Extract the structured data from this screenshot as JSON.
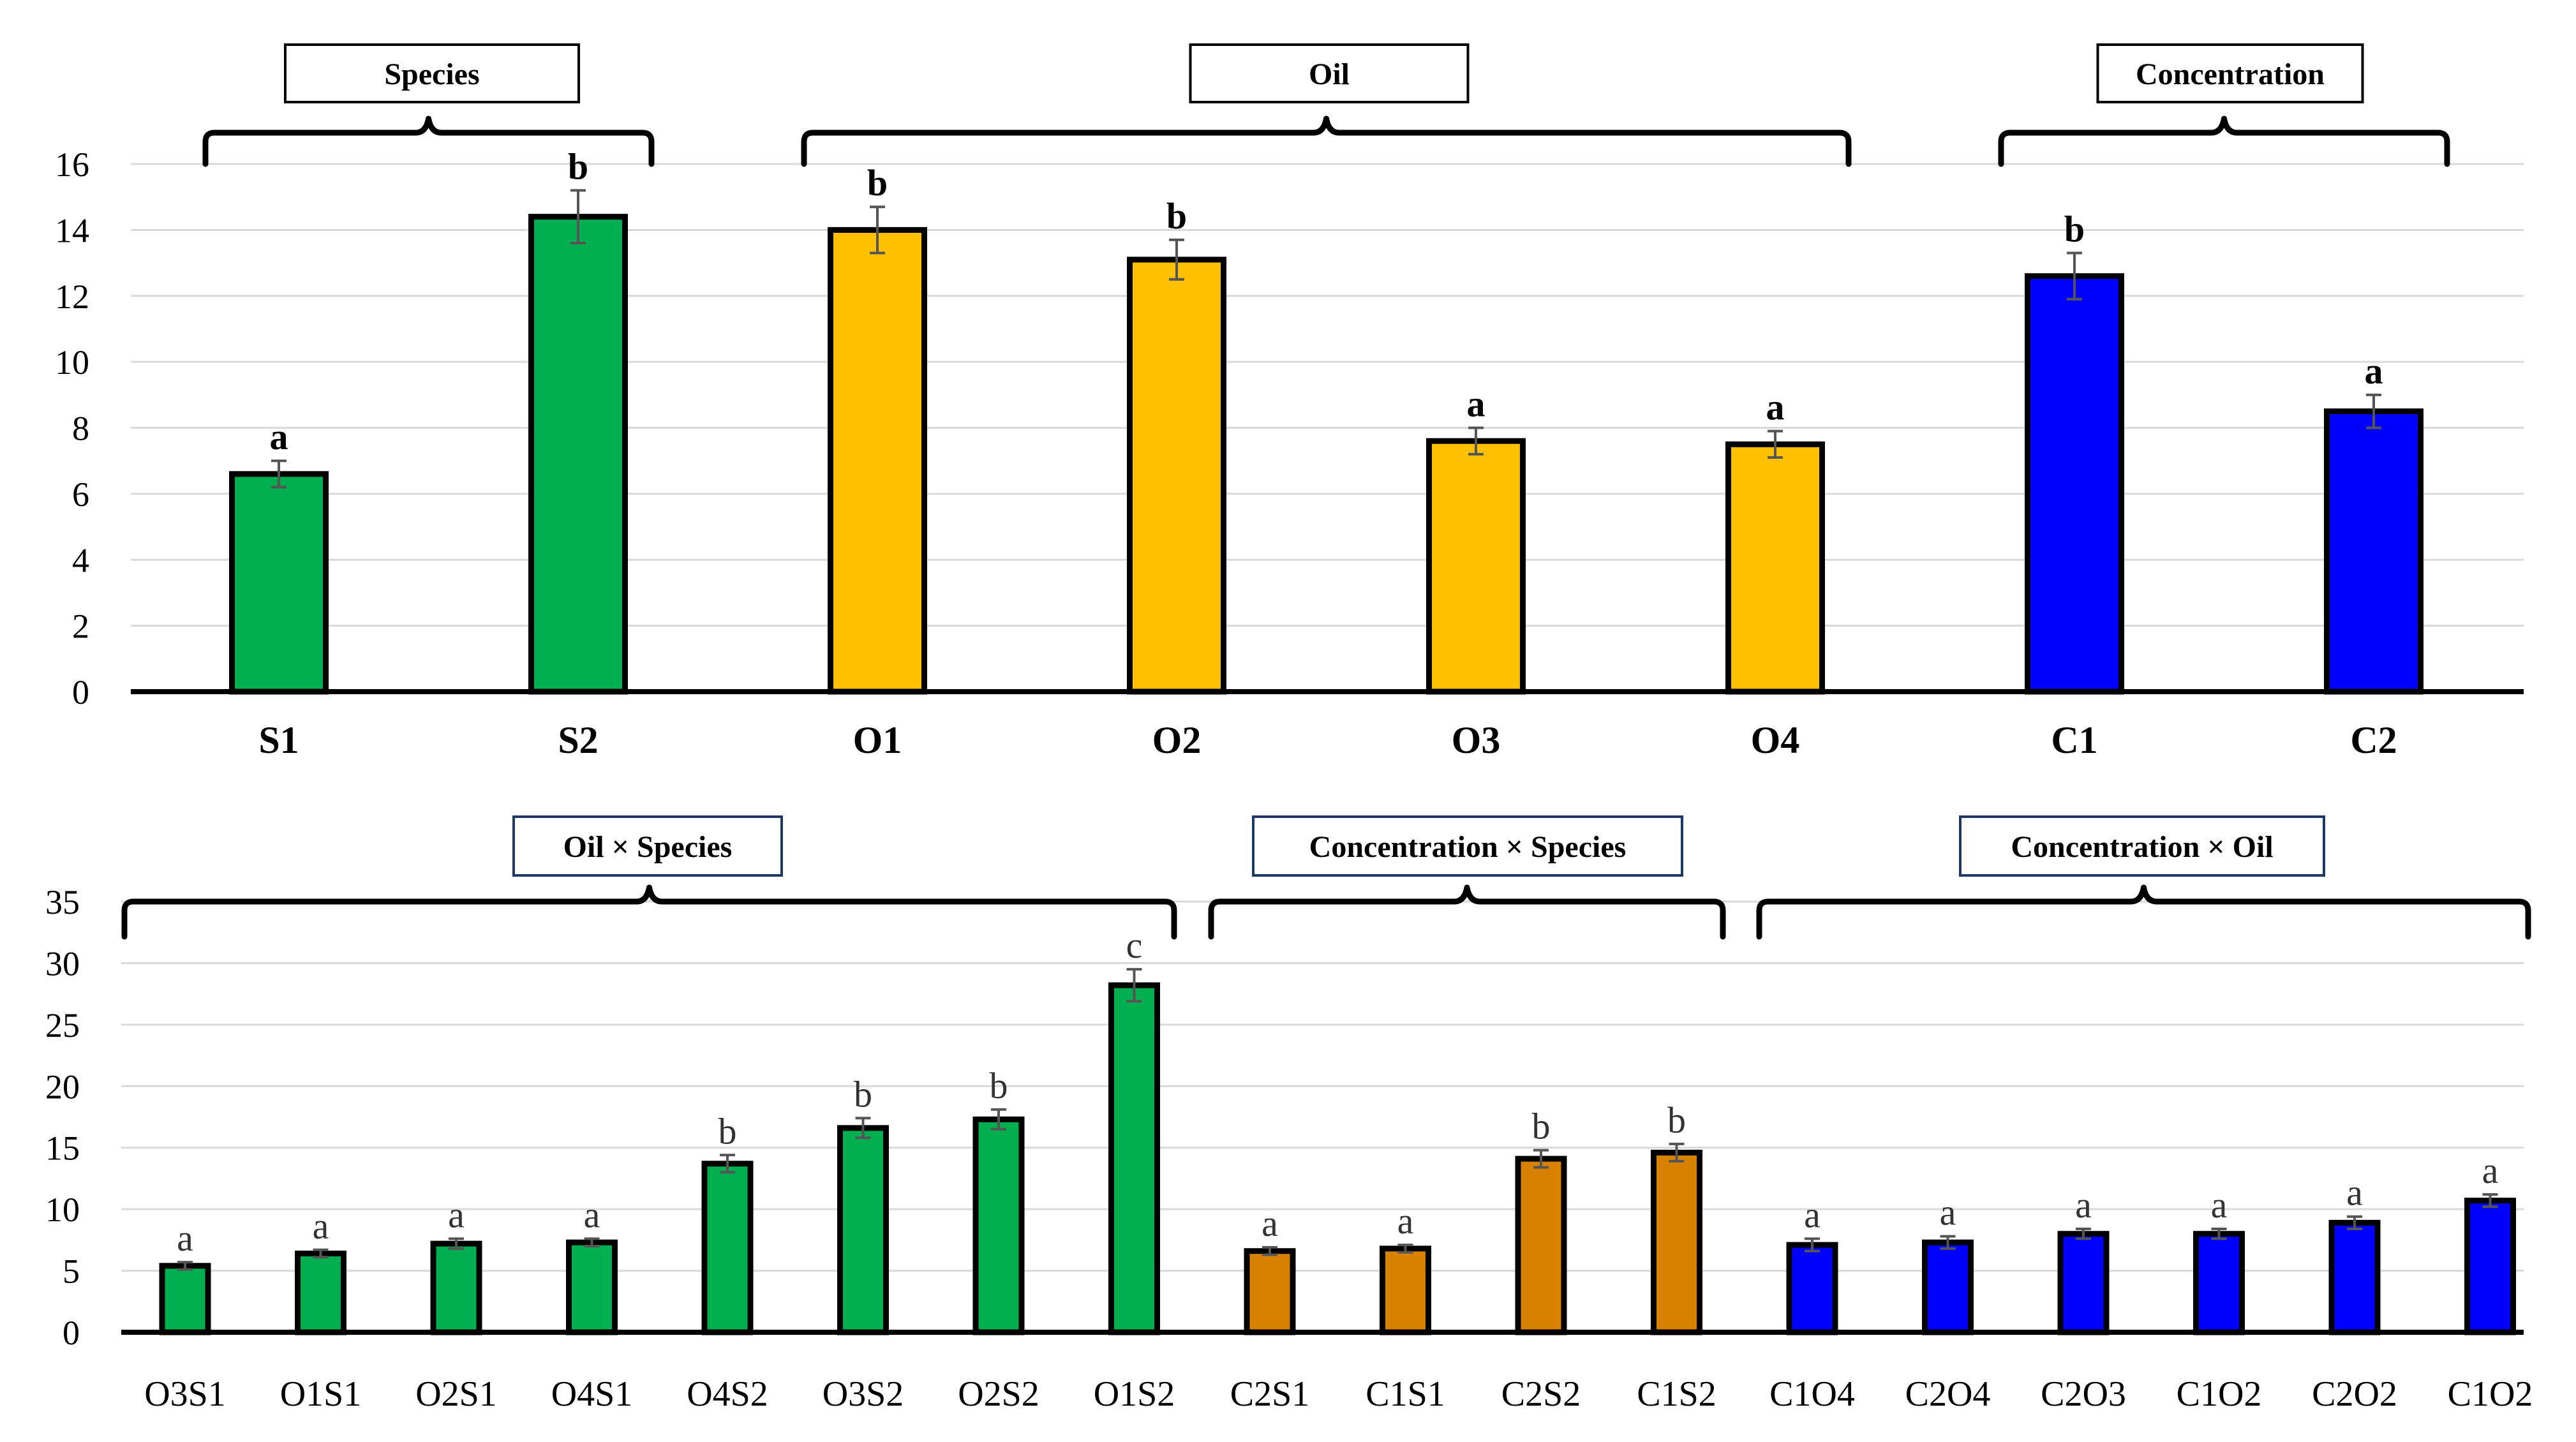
{
  "chart_data": [
    {
      "type": "bar",
      "title": "",
      "xlabel": "",
      "ylabel": "",
      "ylim": [
        0,
        16
      ],
      "yticks": [
        "0",
        "2",
        "4",
        "6",
        "8",
        "10",
        "12",
        "14",
        "16"
      ],
      "grid": true,
      "categories": [
        "S1",
        "S2",
        "O1",
        "O2",
        "O3",
        "O4",
        "C1",
        "C2"
      ],
      "values": [
        6.6,
        14.4,
        14.0,
        13.1,
        7.6,
        7.5,
        12.6,
        8.5
      ],
      "errors": [
        0.4,
        0.8,
        0.7,
        0.6,
        0.4,
        0.4,
        0.7,
        0.5
      ],
      "labels": [
        "a",
        "b",
        "b",
        "b",
        "a",
        "a",
        "b",
        "a"
      ],
      "colors": [
        "#00b050",
        "#00b050",
        "#ffc000",
        "#ffc000",
        "#ffc000",
        "#ffc000",
        "#0000ff",
        "#0000ff"
      ],
      "groups": [
        {
          "name": "Species",
          "from": 0,
          "to": 1
        },
        {
          "name": "Oil",
          "from": 2,
          "to": 5
        },
        {
          "name": "Concentration",
          "from": 6,
          "to": 7
        }
      ]
    },
    {
      "type": "bar",
      "title": "",
      "xlabel": "",
      "ylabel": "",
      "ylim": [
        0,
        35
      ],
      "yticks": [
        "0",
        "5",
        "10",
        "15",
        "20",
        "25",
        "30",
        "35"
      ],
      "grid": true,
      "categories": [
        "O3S1",
        "O1S1",
        "O2S1",
        "O4S1",
        "O4S2",
        "O3S2",
        "O2S2",
        "O1S2",
        "C2S1",
        "C1S1",
        "C2S2",
        "C1S2",
        "C1O4",
        "C2O4",
        "C2O3",
        "C1O2",
        "C2O2",
        "C1O2"
      ],
      "values": [
        5.4,
        6.4,
        7.2,
        7.3,
        13.7,
        16.6,
        17.3,
        28.2,
        6.6,
        6.8,
        14.1,
        14.6,
        7.1,
        7.3,
        8.0,
        8.0,
        8.9,
        10.7
      ],
      "errors": [
        0.3,
        0.3,
        0.4,
        0.3,
        0.7,
        0.8,
        0.8,
        1.3,
        0.3,
        0.3,
        0.7,
        0.7,
        0.5,
        0.5,
        0.4,
        0.4,
        0.5,
        0.5
      ],
      "labels": [
        "a",
        "a",
        "a",
        "a",
        "b",
        "b",
        "b",
        "c",
        "a",
        "a",
        "b",
        "b",
        "a",
        "a",
        "a",
        "a",
        "a",
        "a"
      ],
      "colors": [
        "#00b050",
        "#00b050",
        "#00b050",
        "#00b050",
        "#00b050",
        "#00b050",
        "#00b050",
        "#00b050",
        "#d98200",
        "#d98200",
        "#d98200",
        "#d98200",
        "#0000ff",
        "#0000ff",
        "#0000ff",
        "#0000ff",
        "#0000ff",
        "#0000ff"
      ],
      "groups": [
        {
          "name": "Oil × Species",
          "from": 0,
          "to": 7
        },
        {
          "name": "Concentration × Species",
          "from": 8,
          "to": 11
        },
        {
          "name": "Concentration × Oil",
          "from": 12,
          "to": 17
        }
      ]
    }
  ]
}
